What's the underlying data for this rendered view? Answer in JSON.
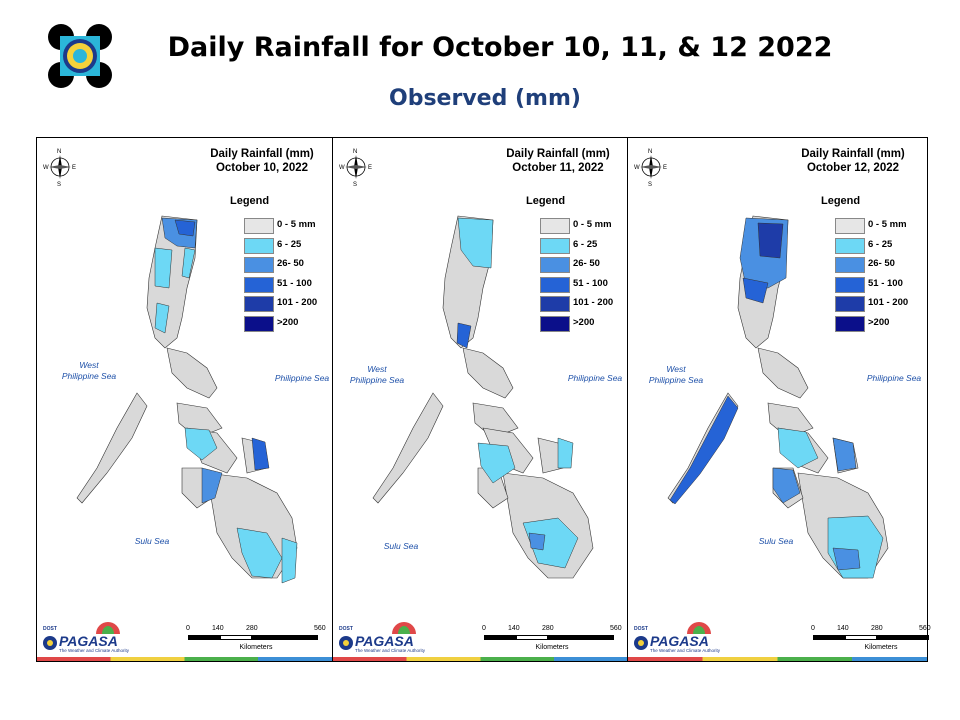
{
  "header": {
    "title": "Daily Rainfall for October 10, 11, & 12 2022",
    "subtitle": "Observed (mm)",
    "logo_icon": "dost-pagasa-seal-icon"
  },
  "legend": {
    "title": "Legend",
    "items": [
      {
        "label": "0 - 5 mm",
        "color": "#e6e6e6"
      },
      {
        "label": "6 - 25",
        "color": "#6dd8f5"
      },
      {
        "label": "26- 50",
        "color": "#4a90e2"
      },
      {
        "label": "51 - 100",
        "color": "#2563d6"
      },
      {
        "label": "101 - 200",
        "color": "#1e3ca8"
      },
      {
        "label": ">200",
        "color": "#0b0f8a"
      }
    ]
  },
  "panels": [
    {
      "title_line1": "Daily Rainfall (mm)",
      "title_line2": "October 10, 2022"
    },
    {
      "title_line1": "Daily Rainfall (mm)",
      "title_line2": "October 11, 2022"
    },
    {
      "title_line1": "Daily Rainfall (mm)",
      "title_line2": "October 12, 2022"
    }
  ],
  "labels": {
    "west_sea_1": "West",
    "west_sea_2": "Philippine Sea",
    "east_sea": "Philippine Sea",
    "sulu_sea": "Sulu Sea",
    "compass_n": "N",
    "compass_s": "S",
    "compass_e": "E",
    "compass_w": "W"
  },
  "scale": {
    "ticks": [
      "0",
      "140",
      "280",
      "560"
    ],
    "unit": "Kilometers"
  },
  "branding": {
    "dost": "DOST",
    "pagasa": "PAGASA",
    "tagline": "The Weather and Climate Authority"
  }
}
